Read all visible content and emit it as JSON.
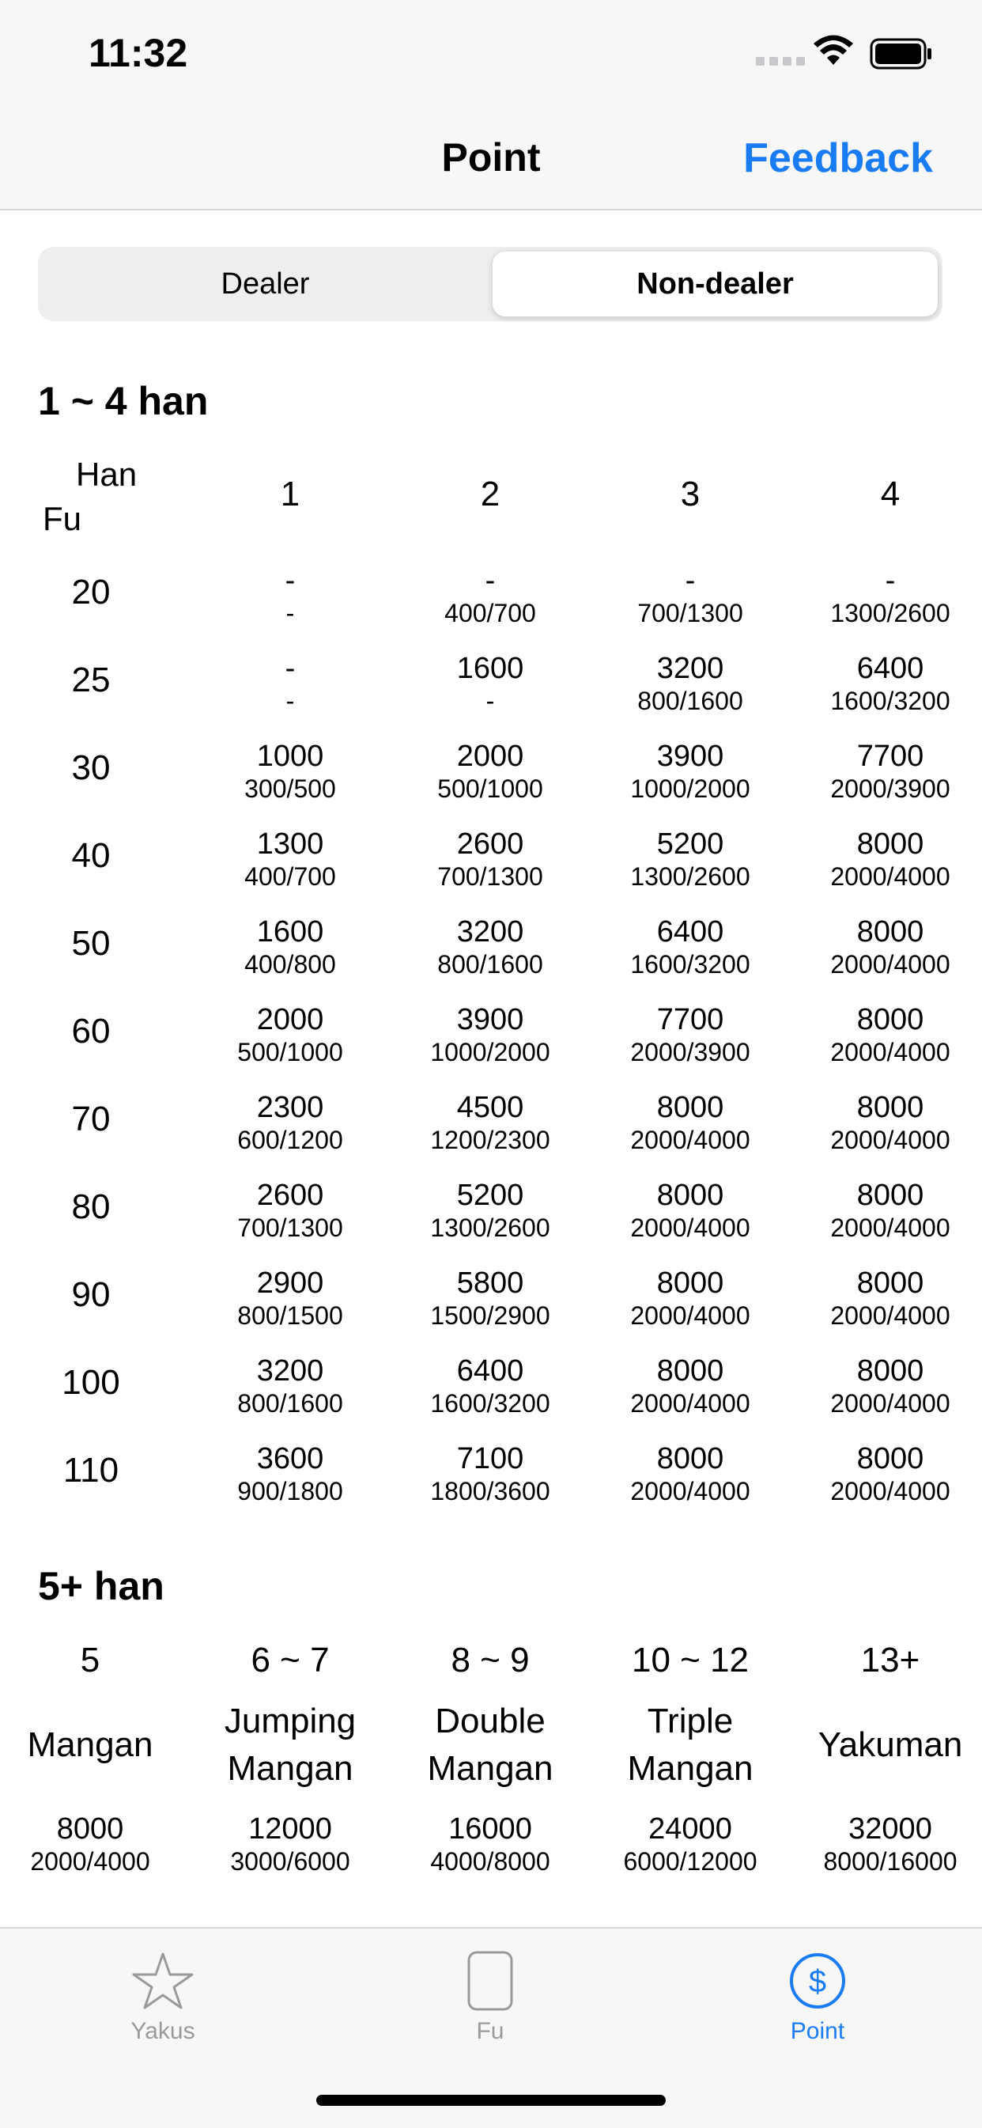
{
  "status": {
    "time": "11:32"
  },
  "nav": {
    "title": "Point",
    "feedback": "Feedback"
  },
  "segment": {
    "dealer": "Dealer",
    "non_dealer": "Non-dealer",
    "selected": "Non-dealer"
  },
  "table1": {
    "title": "1 ~ 4 han",
    "corner_han": "Han",
    "corner_fu": "Fu",
    "han_headers": [
      "1",
      "2",
      "3",
      "4"
    ],
    "rows": [
      {
        "fu": "20",
        "cells": [
          {
            "main": "-",
            "sub": "-"
          },
          {
            "main": "-",
            "sub": "400/700"
          },
          {
            "main": "-",
            "sub": "700/1300"
          },
          {
            "main": "-",
            "sub": "1300/2600"
          }
        ]
      },
      {
        "fu": "25",
        "cells": [
          {
            "main": "-",
            "sub": "-"
          },
          {
            "main": "1600",
            "sub": "-"
          },
          {
            "main": "3200",
            "sub": "800/1600"
          },
          {
            "main": "6400",
            "sub": "1600/3200"
          }
        ]
      },
      {
        "fu": "30",
        "cells": [
          {
            "main": "1000",
            "sub": "300/500"
          },
          {
            "main": "2000",
            "sub": "500/1000"
          },
          {
            "main": "3900",
            "sub": "1000/2000"
          },
          {
            "main": "7700",
            "sub": "2000/3900"
          }
        ]
      },
      {
        "fu": "40",
        "cells": [
          {
            "main": "1300",
            "sub": "400/700"
          },
          {
            "main": "2600",
            "sub": "700/1300"
          },
          {
            "main": "5200",
            "sub": "1300/2600"
          },
          {
            "main": "8000",
            "sub": "2000/4000"
          }
        ]
      },
      {
        "fu": "50",
        "cells": [
          {
            "main": "1600",
            "sub": "400/800"
          },
          {
            "main": "3200",
            "sub": "800/1600"
          },
          {
            "main": "6400",
            "sub": "1600/3200"
          },
          {
            "main": "8000",
            "sub": "2000/4000"
          }
        ]
      },
      {
        "fu": "60",
        "cells": [
          {
            "main": "2000",
            "sub": "500/1000"
          },
          {
            "main": "3900",
            "sub": "1000/2000"
          },
          {
            "main": "7700",
            "sub": "2000/3900"
          },
          {
            "main": "8000",
            "sub": "2000/4000"
          }
        ]
      },
      {
        "fu": "70",
        "cells": [
          {
            "main": "2300",
            "sub": "600/1200"
          },
          {
            "main": "4500",
            "sub": "1200/2300"
          },
          {
            "main": "8000",
            "sub": "2000/4000"
          },
          {
            "main": "8000",
            "sub": "2000/4000"
          }
        ]
      },
      {
        "fu": "80",
        "cells": [
          {
            "main": "2600",
            "sub": "700/1300"
          },
          {
            "main": "5200",
            "sub": "1300/2600"
          },
          {
            "main": "8000",
            "sub": "2000/4000"
          },
          {
            "main": "8000",
            "sub": "2000/4000"
          }
        ]
      },
      {
        "fu": "90",
        "cells": [
          {
            "main": "2900",
            "sub": "800/1500"
          },
          {
            "main": "5800",
            "sub": "1500/2900"
          },
          {
            "main": "8000",
            "sub": "2000/4000"
          },
          {
            "main": "8000",
            "sub": "2000/4000"
          }
        ]
      },
      {
        "fu": "100",
        "cells": [
          {
            "main": "3200",
            "sub": "800/1600"
          },
          {
            "main": "6400",
            "sub": "1600/3200"
          },
          {
            "main": "8000",
            "sub": "2000/4000"
          },
          {
            "main": "8000",
            "sub": "2000/4000"
          }
        ]
      },
      {
        "fu": "110",
        "cells": [
          {
            "main": "3600",
            "sub": "900/1800"
          },
          {
            "main": "7100",
            "sub": "1800/3600"
          },
          {
            "main": "8000",
            "sub": "2000/4000"
          },
          {
            "main": "8000",
            "sub": "2000/4000"
          }
        ]
      }
    ]
  },
  "table2": {
    "title": "5+ han",
    "columns": [
      {
        "range": "5",
        "name_lines": [
          "Mangan"
        ],
        "main": "8000",
        "sub": "2000/4000"
      },
      {
        "range": "6 ~ 7",
        "name_lines": [
          "Jumping",
          "Mangan"
        ],
        "main": "12000",
        "sub": "3000/6000"
      },
      {
        "range": "8 ~ 9",
        "name_lines": [
          "Double",
          "Mangan"
        ],
        "main": "16000",
        "sub": "4000/8000"
      },
      {
        "range": "10 ~ 12",
        "name_lines": [
          "Triple",
          "Mangan"
        ],
        "main": "24000",
        "sub": "6000/12000"
      },
      {
        "range": "13+",
        "name_lines": [
          "Yakuman"
        ],
        "main": "32000",
        "sub": "8000/16000"
      }
    ]
  },
  "tabs": [
    {
      "label": "Yakus",
      "icon": "star-icon",
      "active": false
    },
    {
      "label": "Fu",
      "icon": "tile-icon",
      "active": false
    },
    {
      "label": "Point",
      "icon": "dollar-circle-icon",
      "active": true
    }
  ],
  "colors": {
    "accent": "#1a7cf5",
    "inactive": "#9a9a9a",
    "bar_bg": "#f7f7f7"
  }
}
